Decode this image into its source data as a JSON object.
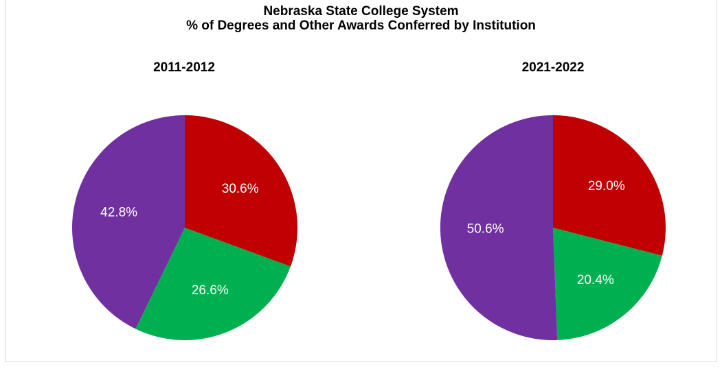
{
  "chart_data": [
    {
      "type": "pie",
      "title_lines": [
        "Nebraska State College System",
        "% of Degrees and Other Awards Conferred by Institution"
      ],
      "subtitle": "2011-2012",
      "slices": [
        {
          "value": 30.6,
          "label": "30.6%",
          "color": "#c00000"
        },
        {
          "value": 26.6,
          "label": "26.6%",
          "color": "#00b050"
        },
        {
          "value": 42.8,
          "label": "42.8%",
          "color": "#7030a0"
        }
      ],
      "legend": "none"
    },
    {
      "type": "pie",
      "subtitle": "2021-2022",
      "slices": [
        {
          "value": 29.0,
          "label": "29.0%",
          "color": "#c00000"
        },
        {
          "value": 20.4,
          "label": "20.4%",
          "color": "#00b050"
        },
        {
          "value": 50.6,
          "label": "50.6%",
          "color": "#7030a0"
        }
      ],
      "legend": "none"
    }
  ]
}
